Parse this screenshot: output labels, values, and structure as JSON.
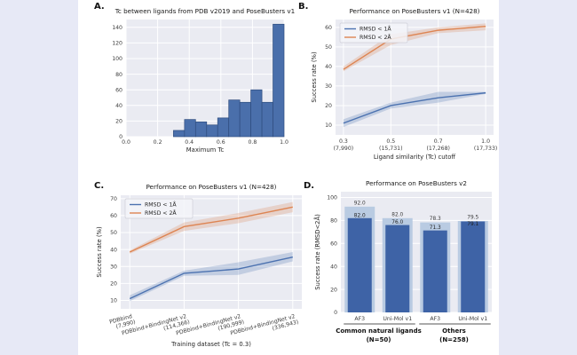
{
  "colors": {
    "page_background": "#e7e9f6",
    "figure_background": "#ffffff",
    "plot_background": "#eaebf2",
    "gridline": "#ffffff",
    "tick_text": "#3d3d3d",
    "title_text": "#1a1a1a",
    "blue_line": "#4c72b0",
    "orange_line": "#dd8452",
    "histogram_bar": "#4a6fab",
    "histogram_bar_edge": "#2f4d7f",
    "bar_dark": "#3e63a6",
    "bar_light": "#b9cbe2"
  },
  "panels": [
    {
      "label": "A."
    },
    {
      "label": "B."
    },
    {
      "label": "C."
    },
    {
      "label": "D."
    }
  ],
  "chart_data": [
    {
      "panel": "A",
      "type": "bar",
      "title": "Tc between ligands from PDB v2019 and PoseBusters v1",
      "xlabel": "Maximum Tc",
      "ylabel": "",
      "bin_start": 0.3,
      "bin_width": 0.07,
      "values": [
        8,
        22,
        19,
        15,
        24,
        47,
        44,
        60,
        44,
        144
      ],
      "xlim": [
        0.0,
        1.0
      ],
      "ylim": [
        0,
        150
      ],
      "xticks": [
        "0.0",
        "0.2",
        "0.4",
        "0.6",
        "0.8",
        "1.0"
      ],
      "xtick_vals": [
        0.0,
        0.2,
        0.4,
        0.6,
        0.8,
        1.0
      ],
      "yticks": [
        0,
        20,
        40,
        60,
        80,
        100,
        120,
        140
      ],
      "grid": true,
      "bar_color": "#4a6fab",
      "bar_edge": "#2f4d7f"
    },
    {
      "panel": "B",
      "type": "line",
      "title": "Performance on PoseBusters v1 (N=428)",
      "xlabel": "Ligand similarity (Tc) cutoff",
      "ylabel": "Success rate (%)",
      "xtick_line1": [
        "0.3",
        "0.5",
        "0.7",
        "1.0"
      ],
      "xtick_line2": [
        "(7,990)",
        "(15,731)",
        "(17,268)",
        "(17,733)"
      ],
      "rotate_xticks": false,
      "ylim": [
        5,
        64
      ],
      "yticks": [
        10,
        20,
        30,
        40,
        50,
        60
      ],
      "grid": true,
      "legend_position": "upper left",
      "series": [
        {
          "name": "RMSD < 1Å",
          "color": "#4c72b0",
          "values": [
            11,
            20,
            24,
            26.5
          ],
          "band_lower": [
            9,
            18.5,
            21.5,
            26
          ],
          "band_upper": [
            13,
            21.5,
            27,
            27
          ]
        },
        {
          "name": "RMSD < 2Å",
          "color": "#dd8452",
          "values": [
            38.5,
            54,
            58.5,
            60.5
          ],
          "band_lower": [
            37.5,
            51,
            57,
            58.5
          ],
          "band_upper": [
            40,
            56.5,
            60,
            62
          ]
        }
      ]
    },
    {
      "panel": "C",
      "type": "line",
      "title": "Performance on PoseBusters v1 (N=428)",
      "xlabel": "Training dataset (Tc = 0.3)",
      "ylabel": "Success rate (%)",
      "xtick_line1": [
        "PDBbind",
        "PDBbind+BindingNet v2",
        "PDBbind+BindingNet v2",
        "PDBbind+BindingNet v2"
      ],
      "xtick_line2": [
        "(7,990)",
        "(114,366)",
        "(190,999)",
        "(336,943)"
      ],
      "rotate_xticks": true,
      "ylim": [
        5,
        72
      ],
      "yticks": [
        10,
        20,
        30,
        40,
        50,
        60,
        70
      ],
      "grid": true,
      "legend_position": "upper left",
      "series": [
        {
          "name": "RMSD < 1Å",
          "color": "#4c72b0",
          "values": [
            11,
            26,
            28.5,
            35.5
          ],
          "band_lower": [
            9.5,
            24.5,
            25,
            33
          ],
          "band_upper": [
            13,
            27.5,
            32.5,
            38.5
          ]
        },
        {
          "name": "RMSD < 2Å",
          "color": "#dd8452",
          "values": [
            38.5,
            53.5,
            58.5,
            65
          ],
          "band_lower": [
            37.5,
            51,
            55.5,
            62
          ],
          "band_upper": [
            39.5,
            56,
            61.5,
            68
          ]
        }
      ]
    },
    {
      "panel": "D",
      "type": "grouped-bar",
      "title": "Performance on PoseBusters v2",
      "xlabel": "",
      "ylabel": "Success rate (RMSD<2Å)",
      "ylim": [
        0,
        105
      ],
      "yticks": [
        0,
        20,
        40,
        60,
        80,
        100
      ],
      "grid": true,
      "light_color": "#b9cbe2",
      "dark_color": "#3e63a6",
      "bars": [
        {
          "label": "AF3",
          "light": 92.0,
          "light_label": "92.0",
          "dark": 82.0,
          "dark_label": "82.0"
        },
        {
          "label": "Uni-Mol v1",
          "light": 82.0,
          "light_label": "82.0",
          "dark": 76.0,
          "dark_label": "76.0"
        },
        {
          "label": "AF3",
          "light": 78.3,
          "light_label": "78.3",
          "dark": 71.3,
          "dark_label": "71.3"
        },
        {
          "label": "Uni-Mol v1",
          "light": 79.5,
          "light_label": "79.5",
          "dark": 79.1,
          "dark_label": "79.1"
        }
      ],
      "groups": [
        {
          "label": "Common natural ligands",
          "n": "(N=50)",
          "bars": [
            0,
            1
          ]
        },
        {
          "label": "Others",
          "n": "(N=258)",
          "bars": [
            2,
            3
          ]
        }
      ]
    }
  ]
}
